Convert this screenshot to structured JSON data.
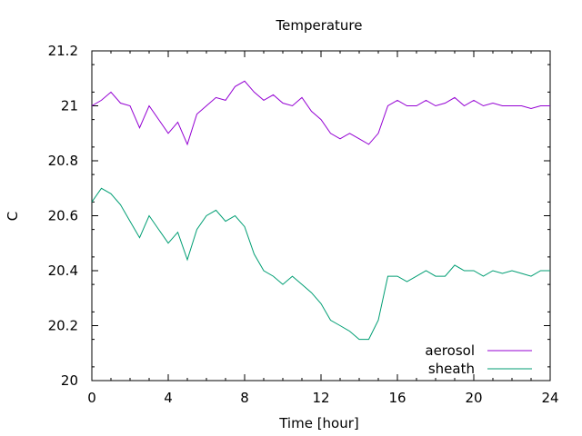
{
  "colors": {
    "aerosol": "#9400d3",
    "sheath": "#009e73",
    "axis": "#000000"
  },
  "chart_data": {
    "type": "line",
    "title": "Temperature",
    "xlabel": "Time [hour]",
    "ylabel": "C",
    "xlim": [
      0,
      24
    ],
    "ylim": [
      20,
      21.2
    ],
    "xticks": [
      "0",
      "4",
      "8",
      "12",
      "16",
      "20",
      "24"
    ],
    "yticks": [
      "20",
      "20.2",
      "20.4",
      "20.6",
      "20.8",
      "21",
      "21.2"
    ],
    "legend_position": "bottom-right",
    "grid": false,
    "series": [
      {
        "name": "aerosol",
        "x": [
          0,
          0.5,
          1,
          1.5,
          2,
          2.5,
          3,
          3.5,
          4,
          4.5,
          5,
          5.5,
          6,
          6.5,
          7,
          7.5,
          8,
          8.5,
          9,
          9.5,
          10,
          10.5,
          11,
          11.5,
          12,
          12.5,
          13,
          13.5,
          14,
          14.5,
          15,
          15.5,
          16,
          16.5,
          17,
          17.5,
          18,
          18.5,
          19,
          19.5,
          20,
          20.5,
          21,
          21.5,
          22,
          22.5,
          23,
          23.5,
          24
        ],
        "values": [
          21.0,
          21.02,
          21.05,
          21.01,
          21.0,
          20.92,
          21.0,
          20.95,
          20.9,
          20.94,
          20.86,
          20.97,
          21.0,
          21.03,
          21.02,
          21.07,
          21.09,
          21.05,
          21.02,
          21.04,
          21.01,
          21.0,
          21.03,
          20.98,
          20.95,
          20.9,
          20.88,
          20.9,
          20.88,
          20.86,
          20.9,
          21.0,
          21.02,
          21.0,
          21.0,
          21.02,
          21.0,
          21.01,
          21.03,
          21.0,
          21.02,
          21.0,
          21.01,
          21.0,
          21.0,
          21.0,
          20.99,
          21.0,
          21.0
        ]
      },
      {
        "name": "sheath",
        "x": [
          0,
          0.5,
          1,
          1.5,
          2,
          2.5,
          3,
          3.5,
          4,
          4.5,
          5,
          5.5,
          6,
          6.5,
          7,
          7.5,
          8,
          8.5,
          9,
          9.5,
          10,
          10.5,
          11,
          11.5,
          12,
          12.5,
          13,
          13.5,
          14,
          14.5,
          15,
          15.5,
          16,
          16.5,
          17,
          17.5,
          18,
          18.5,
          19,
          19.5,
          20,
          20.5,
          21,
          21.5,
          22,
          22.5,
          23,
          23.5,
          24
        ],
        "values": [
          20.65,
          20.7,
          20.68,
          20.64,
          20.58,
          20.52,
          20.6,
          20.55,
          20.5,
          20.54,
          20.44,
          20.55,
          20.6,
          20.62,
          20.58,
          20.6,
          20.56,
          20.46,
          20.4,
          20.38,
          20.35,
          20.38,
          20.35,
          20.32,
          20.28,
          20.22,
          20.2,
          20.18,
          20.15,
          20.15,
          20.22,
          20.38,
          20.38,
          20.36,
          20.38,
          20.4,
          20.38,
          20.38,
          20.42,
          20.4,
          20.4,
          20.38,
          20.4,
          20.39,
          20.4,
          20.39,
          20.38,
          20.4,
          20.4
        ]
      }
    ]
  }
}
